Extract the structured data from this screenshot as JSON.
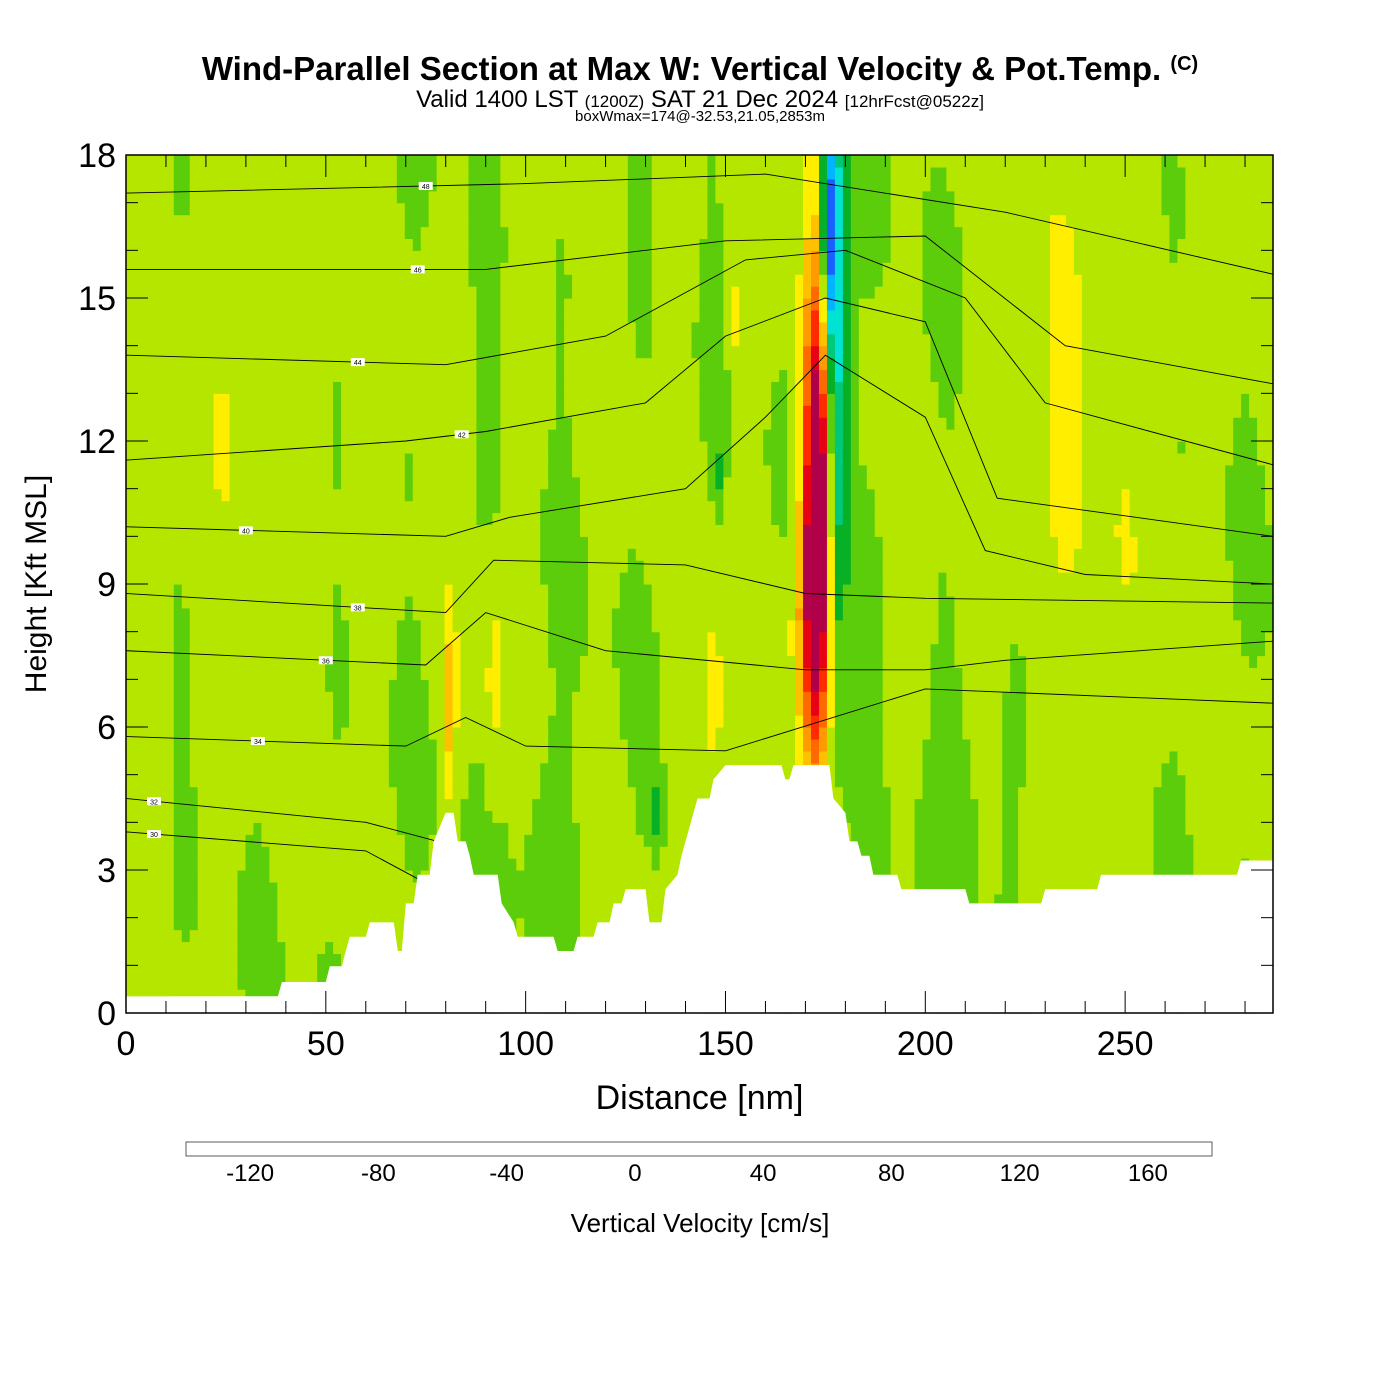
{
  "header": {
    "title": "Wind-Parallel Section at Max W: Vertical Velocity & Pot.Temp.",
    "copyright": "(C)",
    "valid_prefix": "Valid 1400 LST",
    "valid_utc": "(1200Z)",
    "valid_date": "SAT 21 Dec 2024",
    "forecast": "[12hrFcst@0522z]",
    "box_info": "boxWmax=174@-32.53,21.05,2853m"
  },
  "chart_data": {
    "type": "heatmap",
    "xlabel": "Distance [nm]",
    "ylabel": "Height [Kft MSL]",
    "xlim": [
      0,
      287
    ],
    "ylim": [
      0,
      18
    ],
    "x_ticks": [
      0,
      50,
      100,
      150,
      200,
      250
    ],
    "y_ticks": [
      0,
      3,
      6,
      9,
      12,
      15,
      18
    ],
    "colorbar": {
      "label": "Vertical Velocity [cm/s]",
      "bounds": [
        -140,
        -120,
        -100,
        -80,
        -60,
        -40,
        -20,
        0,
        20,
        40,
        60,
        80,
        100,
        120,
        140,
        160,
        180
      ],
      "colors": [
        "#0000ee",
        "#1a5fff",
        "#00b4ff",
        "#00e2d2",
        "#00c87a",
        "#08b025",
        "#5ccd0a",
        "#b4e600",
        "#ffee00",
        "#ffc000",
        "#ff9a00",
        "#ff6a00",
        "#ff2a00",
        "#e80014",
        "#b0004a"
      ],
      "tick_values": [
        -120,
        -80,
        -40,
        0,
        40,
        80,
        120,
        160
      ],
      "tick_labels": [
        "-120",
        "-80",
        "-40",
        "0",
        "40",
        "80",
        "120",
        "160"
      ]
    },
    "terrain": [
      [
        0,
        0.35
      ],
      [
        38,
        0.35
      ],
      [
        39,
        0.65
      ],
      [
        50,
        0.65
      ],
      [
        51,
        0.98
      ],
      [
        54,
        0.98
      ],
      [
        55,
        1.3
      ],
      [
        56,
        1.6
      ],
      [
        60,
        1.6
      ],
      [
        61,
        1.9
      ],
      [
        67,
        1.9
      ],
      [
        68,
        1.3
      ],
      [
        69,
        1.3
      ],
      [
        70,
        2.3
      ],
      [
        72,
        2.3
      ],
      [
        73,
        2.9
      ],
      [
        76,
        2.9
      ],
      [
        77,
        3.6
      ],
      [
        80,
        4.2
      ],
      [
        82,
        4.2
      ],
      [
        83,
        3.6
      ],
      [
        85,
        3.6
      ],
      [
        86,
        3.3
      ],
      [
        87,
        2.9
      ],
      [
        93,
        2.9
      ],
      [
        94,
        2.3
      ],
      [
        97,
        1.9
      ],
      [
        98,
        1.6
      ],
      [
        107,
        1.6
      ],
      [
        108,
        1.3
      ],
      [
        112,
        1.3
      ],
      [
        113,
        1.6
      ],
      [
        117,
        1.6
      ],
      [
        118,
        1.9
      ],
      [
        121,
        1.9
      ],
      [
        122,
        2.3
      ],
      [
        124,
        2.3
      ],
      [
        125,
        2.6
      ],
      [
        130,
        2.6
      ],
      [
        131,
        1.9
      ],
      [
        134,
        1.9
      ],
      [
        135,
        2.6
      ],
      [
        138,
        2.9
      ],
      [
        139,
        3.3
      ],
      [
        141,
        3.9
      ],
      [
        142,
        4.2
      ],
      [
        143,
        4.5
      ],
      [
        146,
        4.5
      ],
      [
        147,
        4.9
      ],
      [
        150,
        5.2
      ],
      [
        164,
        5.2
      ],
      [
        165,
        4.9
      ],
      [
        166,
        4.9
      ],
      [
        167,
        5.2
      ],
      [
        176,
        5.2
      ],
      [
        177,
        4.5
      ],
      [
        180,
        4.2
      ],
      [
        181,
        3.6
      ],
      [
        183,
        3.6
      ],
      [
        184,
        3.3
      ],
      [
        186,
        3.3
      ],
      [
        187,
        2.9
      ],
      [
        193,
        2.9
      ],
      [
        194,
        2.6
      ],
      [
        210,
        2.6
      ],
      [
        211,
        2.3
      ],
      [
        229,
        2.3
      ],
      [
        230,
        2.6
      ],
      [
        243,
        2.6
      ],
      [
        244,
        2.9
      ],
      [
        278,
        2.9
      ],
      [
        279,
        3.2
      ],
      [
        287,
        3.2
      ]
    ],
    "velocity_features": [
      {
        "x": 173,
        "y": 10.0,
        "sx": 2.0,
        "sy": 3.0,
        "value": 174
      },
      {
        "x": 172,
        "y": 12.0,
        "sx": 2.4,
        "sy": 4.0,
        "value": 60
      },
      {
        "x": 170,
        "y": 8.0,
        "sx": 2.6,
        "sy": 2.0,
        "value": 45
      },
      {
        "x": 178,
        "y": 13.5,
        "sx": 2.2,
        "sy": 4.0,
        "value": -70
      },
      {
        "x": 176,
        "y": 16.5,
        "sx": 1.6,
        "sy": 1.8,
        "value": -95
      },
      {
        "x": 81,
        "y": 6.5,
        "sx": 1.2,
        "sy": 1.5,
        "value": 45
      },
      {
        "x": 92,
        "y": 7.0,
        "sx": 1.5,
        "sy": 1.5,
        "value": 25
      },
      {
        "x": 147,
        "y": 6.5,
        "sx": 2.2,
        "sy": 1.6,
        "value": 28
      },
      {
        "x": 153,
        "y": 14.5,
        "sx": 1.5,
        "sy": 1.0,
        "value": 25
      },
      {
        "x": 133,
        "y": 4.2,
        "sx": 1.0,
        "sy": 0.6,
        "value": -30
      },
      {
        "x": 148,
        "y": 11.3,
        "sx": 0.8,
        "sy": 0.5,
        "value": -30
      },
      {
        "x": 106,
        "y": 3.5,
        "sx": 5.0,
        "sy": 2.0,
        "value": -12
      },
      {
        "x": 213,
        "y": 4.5,
        "sx": 10.0,
        "sy": 2.0,
        "value": -10
      },
      {
        "x": 240,
        "y": 12.0,
        "sx": 12.0,
        "sy": 5.0,
        "value": 18
      },
      {
        "x": 30,
        "y": 13.0,
        "sx": 14.0,
        "sy": 4.0,
        "value": 12
      }
    ],
    "theta_contours": [
      {
        "label": "30",
        "at_x": 7,
        "points": [
          [
            0,
            3.8
          ],
          [
            60,
            3.4
          ],
          [
            80,
            2.5
          ]
        ]
      },
      {
        "label": "32",
        "at_x": 7,
        "points": [
          [
            0,
            4.5
          ],
          [
            60,
            4.0
          ],
          [
            78,
            3.6
          ]
        ]
      },
      {
        "label": "34",
        "at_x": 33,
        "points": [
          [
            0,
            5.8
          ],
          [
            70,
            5.6
          ],
          [
            85,
            6.2
          ],
          [
            100,
            5.6
          ],
          [
            150,
            5.5
          ],
          [
            200,
            6.8
          ],
          [
            287,
            6.5
          ]
        ]
      },
      {
        "label": "36",
        "at_x": 50,
        "points": [
          [
            0,
            7.6
          ],
          [
            75,
            7.3
          ],
          [
            90,
            8.4
          ],
          [
            120,
            7.6
          ],
          [
            170,
            7.2
          ],
          [
            200,
            7.2
          ],
          [
            220,
            7.4
          ],
          [
            287,
            7.8
          ]
        ]
      },
      {
        "label": "38",
        "at_x": 58,
        "points": [
          [
            0,
            8.8
          ],
          [
            80,
            8.4
          ],
          [
            92,
            9.5
          ],
          [
            140,
            9.4
          ],
          [
            170,
            8.8
          ],
          [
            200,
            8.7
          ],
          [
            287,
            8.6
          ]
        ]
      },
      {
        "label": "40",
        "at_x": 30,
        "points": [
          [
            0,
            10.2
          ],
          [
            80,
            10.0
          ],
          [
            96,
            10.4
          ],
          [
            140,
            11.0
          ],
          [
            160,
            12.5
          ],
          [
            175,
            13.8
          ],
          [
            200,
            12.5
          ],
          [
            215,
            9.7
          ],
          [
            240,
            9.2
          ],
          [
            287,
            9.0
          ]
        ]
      },
      {
        "label": "42",
        "at_x": 84,
        "points": [
          [
            0,
            11.6
          ],
          [
            70,
            12.0
          ],
          [
            90,
            12.2
          ],
          [
            130,
            12.8
          ],
          [
            150,
            14.2
          ],
          [
            175,
            15.0
          ],
          [
            200,
            14.5
          ],
          [
            218,
            10.8
          ],
          [
            287,
            10.0
          ]
        ]
      },
      {
        "label": "44",
        "at_x": 58,
        "points": [
          [
            0,
            13.8
          ],
          [
            80,
            13.6
          ],
          [
            120,
            14.2
          ],
          [
            155,
            15.8
          ],
          [
            180,
            16.0
          ],
          [
            210,
            15.0
          ],
          [
            230,
            12.8
          ],
          [
            287,
            11.5
          ]
        ]
      },
      {
        "label": "46",
        "at_x": 73,
        "points": [
          [
            0,
            15.6
          ],
          [
            90,
            15.6
          ],
          [
            150,
            16.2
          ],
          [
            200,
            16.3
          ],
          [
            235,
            14.0
          ],
          [
            287,
            13.2
          ]
        ]
      },
      {
        "label": "48",
        "at_x": 75,
        "points": [
          [
            0,
            17.2
          ],
          [
            100,
            17.4
          ],
          [
            160,
            17.6
          ],
          [
            220,
            16.8
          ],
          [
            287,
            15.5
          ]
        ]
      }
    ]
  }
}
